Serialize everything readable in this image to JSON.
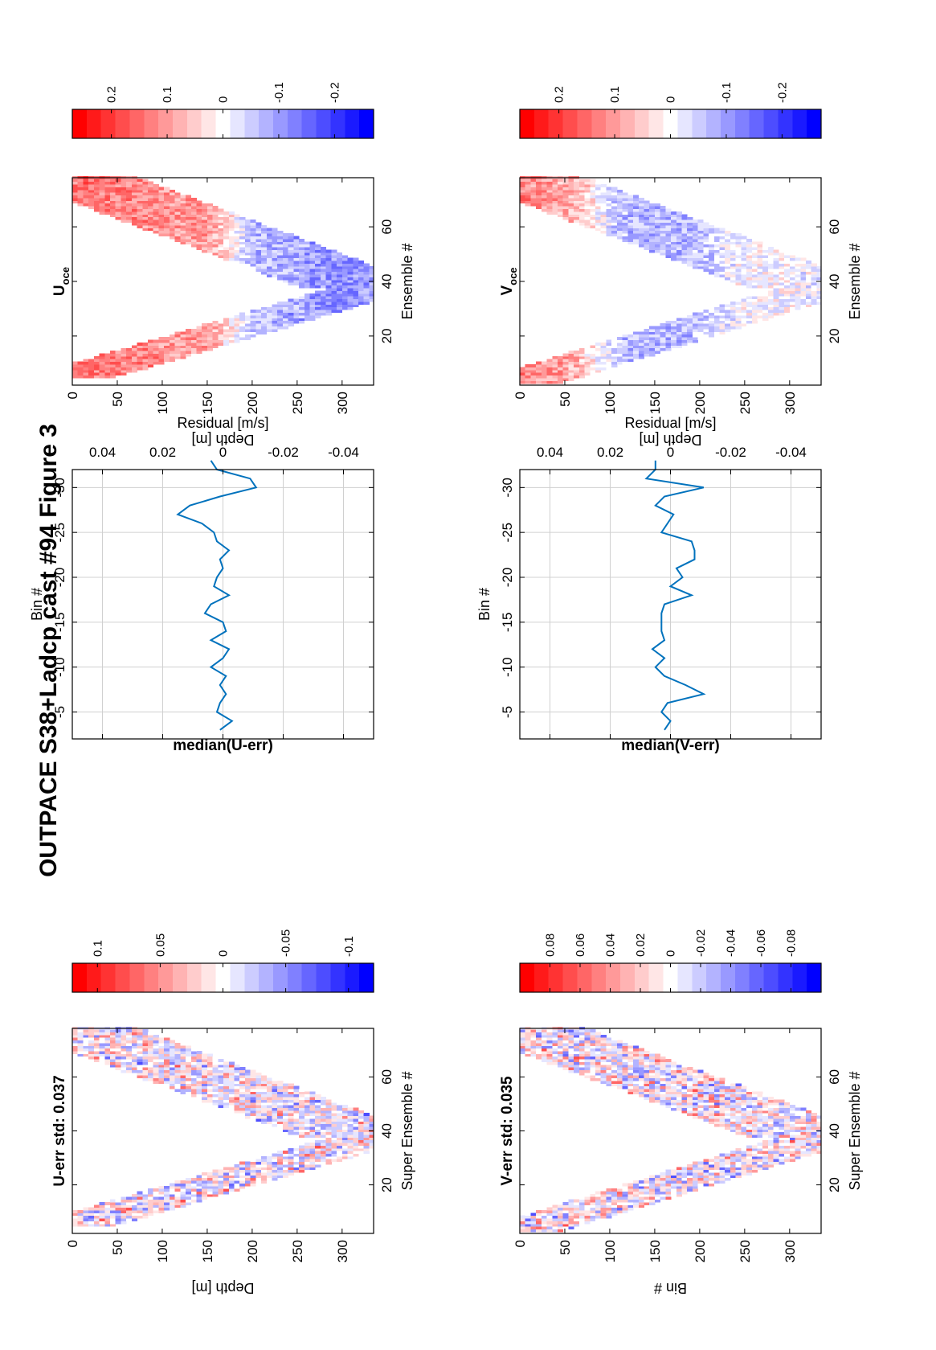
{
  "figure": {
    "title": "OUTPACE S38+Ladcp cast #94  Figure 3"
  },
  "colormap": {
    "name": "blue-white-red diverging",
    "positive_color": "#ff0000",
    "zero_color": "#ffffff",
    "negative_color": "#0000ff",
    "steps": 21
  },
  "chart_data": [
    {
      "id": "u_err",
      "type": "heatmap",
      "title": "U-err std: 0.037",
      "xlabel": "Super Ensemble #",
      "ylabel": "Depth [m]",
      "xlim": [
        2,
        78
      ],
      "ylim": [
        0,
        335
      ],
      "y_reversed": true,
      "xticks": [
        20,
        40,
        60
      ],
      "yticks": [
        0,
        50,
        100,
        150,
        200,
        250,
        300
      ],
      "clim": [
        -0.12,
        0.12
      ],
      "colorbar_ticks": [
        0.1,
        0.05,
        0,
        -0.05,
        -0.1
      ],
      "colorbar_tick_labels": [
        "0.1",
        "0.05",
        "0",
        "-0.05",
        "-0.1"
      ],
      "pattern": "random residuals within V-shaped profile envelope",
      "envelope": {
        "start": 5,
        "bottom_ensemble": 37,
        "max_depth": 332,
        "end": 78,
        "band_depth_start": 15,
        "band_depth_down": 95,
        "band_depth_up": 140
      },
      "value_amplitude": 0.06
    },
    {
      "id": "median_u",
      "type": "line",
      "title": "median(U-err)",
      "xlabel": "Residual [m/s]",
      "ylabel": "Bin #",
      "xlim": [
        -0.05,
        0.05
      ],
      "ylim": [
        -2,
        -32
      ],
      "xticks": [
        -0.04,
        -0.02,
        0,
        0.02,
        0.04
      ],
      "xtick_labels": [
        "-0.04",
        "-0.02",
        "0",
        "0.02",
        "0.04"
      ],
      "yticks": [
        -5,
        -10,
        -15,
        -20,
        -25,
        -30
      ],
      "yticklabels": [
        "-5",
        "-10",
        "-15",
        "-20",
        "-25",
        "-30"
      ],
      "grid": true,
      "series": [
        {
          "color": "#0072bd",
          "x": [
            0.001,
            -0.003,
            0.002,
            0.001,
            -0.001,
            0.001,
            -0.001,
            0.004,
            0.0,
            -0.002,
            0.004,
            -0.001,
            0.0,
            0.006,
            0.004,
            -0.002,
            0.003,
            0.002,
            0.0,
            0.001,
            -0.002,
            0.002,
            0.003,
            0.007,
            0.015,
            0.011,
            0.001,
            -0.011,
            -0.009,
            0.002,
            0.004
          ],
          "y": [
            -3,
            -4,
            -5,
            -6,
            -7,
            -8,
            -9,
            -10,
            -11,
            -12,
            -13,
            -14,
            -15,
            -16,
            -17,
            -18,
            -19,
            -20,
            -21,
            -22,
            -23,
            -24,
            -25,
            -26,
            -27,
            -28,
            -29,
            -30,
            -31,
            -32,
            -33
          ]
        }
      ]
    },
    {
      "id": "u_oce",
      "type": "heatmap",
      "title": "U",
      "title_subscript": "oce",
      "xlabel": "Ensemble #",
      "ylabel": "Depth [m]",
      "xlim": [
        2,
        78
      ],
      "ylim": [
        0,
        335
      ],
      "y_reversed": true,
      "xticks": [
        20,
        40,
        60
      ],
      "yticks": [
        0,
        50,
        100,
        150,
        200,
        250,
        300
      ],
      "clim": [
        -0.27,
        0.27
      ],
      "colorbar_ticks": [
        0.2,
        0.1,
        0,
        -0.1,
        -0.2
      ],
      "colorbar_tick_labels": [
        "0.2",
        "0.1",
        "0",
        "-0.1",
        "-0.2"
      ],
      "pattern": "depth structured: upper layer red, deeper layer blue",
      "envelope": {
        "start": 5,
        "bottom_ensemble": 37,
        "max_depth": 332,
        "end": 78,
        "band_depth_start": 15,
        "band_depth_down": 95,
        "band_depth_up": 140
      },
      "profile": [
        {
          "depth": 0,
          "value": 0.15
        },
        {
          "depth": 150,
          "value": 0.1
        },
        {
          "depth": 200,
          "value": -0.07
        },
        {
          "depth": 300,
          "value": -0.12
        },
        {
          "depth": 335,
          "value": -0.1
        }
      ]
    },
    {
      "id": "v_err",
      "type": "heatmap",
      "title": "V-err std: 0.035",
      "xlabel": "Super Ensemble #",
      "ylabel": "Bin #",
      "xlim": [
        2,
        78
      ],
      "ylim": [
        0,
        335
      ],
      "y_reversed": true,
      "xticks": [
        20,
        40,
        60
      ],
      "yticks": [
        0,
        50,
        100,
        150,
        200,
        250,
        300
      ],
      "clim": [
        -0.1,
        0.1
      ],
      "colorbar_ticks": [
        0.08,
        0.06,
        0.04,
        0.02,
        0,
        -0.02,
        -0.04,
        -0.06,
        -0.08
      ],
      "colorbar_tick_labels": [
        "0.08",
        "0.06",
        "0.04",
        "0.02",
        "0",
        "-0.02",
        "-0.04",
        "-0.06",
        "-0.08"
      ],
      "pattern": "random residuals within V-shaped profile envelope",
      "envelope": {
        "start": 3,
        "bottom_ensemble": 37,
        "max_depth": 332,
        "end": 78,
        "band_depth_start": 15,
        "band_depth_down": 95,
        "band_depth_up": 140
      },
      "value_amplitude": 0.05
    },
    {
      "id": "median_v",
      "type": "line",
      "title": "median(V-err)",
      "xlabel": "Residual [m/s]",
      "ylabel": "Bin #",
      "xlim": [
        -0.05,
        0.05
      ],
      "ylim": [
        -2,
        -32
      ],
      "xticks": [
        -0.04,
        -0.02,
        0,
        0.02,
        0.04
      ],
      "xtick_labels": [
        "-0.04",
        "-0.02",
        "0",
        "0.02",
        "0.04"
      ],
      "yticks": [
        -5,
        -10,
        -15,
        -20,
        -25,
        -30
      ],
      "yticklabels": [
        "-5",
        "-10",
        "-15",
        "-20",
        "-25",
        "-30"
      ],
      "grid": true,
      "series": [
        {
          "color": "#0072bd",
          "x": [
            0.002,
            0.0,
            0.003,
            0.001,
            -0.011,
            -0.005,
            0.002,
            0.005,
            0.002,
            0.006,
            0.002,
            0.003,
            0.003,
            0.003,
            0.002,
            -0.007,
            0.0,
            -0.004,
            -0.002,
            -0.008,
            -0.008,
            -0.007,
            0.003,
            0.001,
            -0.001,
            0.005,
            0.002,
            -0.011,
            0.008,
            0.005,
            0.005
          ],
          "y": [
            -3,
            -4,
            -5,
            -6,
            -7,
            -8,
            -9,
            -10,
            -11,
            -12,
            -13,
            -14,
            -15,
            -16,
            -17,
            -18,
            -19,
            -20,
            -21,
            -22,
            -23,
            -24,
            -25,
            -26,
            -27,
            -28,
            -29,
            -30,
            -31,
            -32,
            -33
          ]
        }
      ]
    },
    {
      "id": "v_oce",
      "type": "heatmap",
      "title": "V",
      "title_subscript": "oce",
      "xlabel": "Ensemble #",
      "ylabel": "Depth [m]",
      "xlim": [
        2,
        78
      ],
      "ylim": [
        0,
        335
      ],
      "y_reversed": true,
      "xticks": [
        20,
        40,
        60
      ],
      "yticks": [
        0,
        50,
        100,
        150,
        200,
        250,
        300
      ],
      "clim": [
        -0.27,
        0.27
      ],
      "colorbar_ticks": [
        0.2,
        0.1,
        0,
        -0.1,
        -0.2
      ],
      "colorbar_tick_labels": [
        "0.2",
        "0.1",
        "0",
        "-0.1",
        "-0.2"
      ],
      "pattern": "near-surface red, mid-depth blue, weak below",
      "envelope": {
        "start": 3,
        "bottom_ensemble": 37,
        "max_depth": 332,
        "end": 78,
        "band_depth_start": 15,
        "band_depth_down": 95,
        "band_depth_up": 140
      },
      "profile": [
        {
          "depth": 0,
          "value": 0.13
        },
        {
          "depth": 60,
          "value": 0.08
        },
        {
          "depth": 110,
          "value": -0.07
        },
        {
          "depth": 180,
          "value": -0.08
        },
        {
          "depth": 250,
          "value": 0.0
        },
        {
          "depth": 335,
          "value": -0.02
        }
      ]
    }
  ]
}
